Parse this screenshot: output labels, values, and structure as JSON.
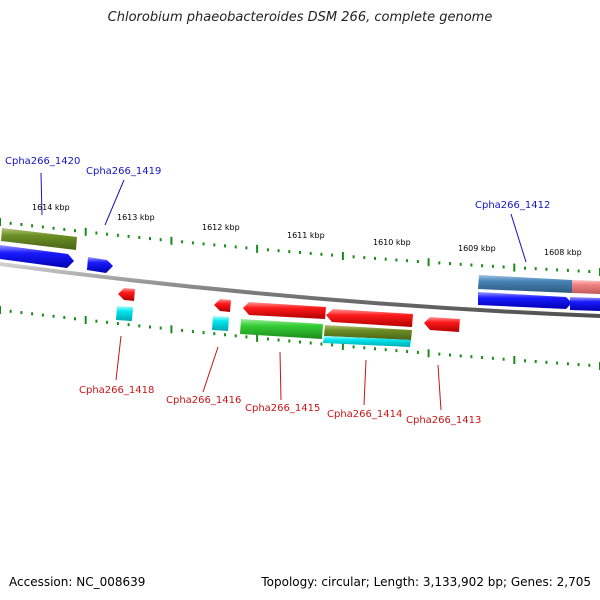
{
  "title": "Chlorobium phaeobacteroides DSM 266, complete genome",
  "footer": {
    "accession": "Accession: NC_008639",
    "summary": "Topology: circular; Length: 3,133,902 bp; Genes: 2,705"
  },
  "scale_labels": [
    "1614 kbp",
    "1613 kbp",
    "1612 kbp",
    "1611 kbp",
    "1610 kbp",
    "1609 kbp",
    "1608 kbp"
  ],
  "gene_labels": {
    "forward": [
      "Cpha266_1420",
      "Cpha266_1419",
      "Cpha266_1412"
    ],
    "reverse": [
      "Cpha266_1418",
      "Cpha266_1416",
      "Cpha266_1415",
      "Cpha266_1414",
      "Cpha266_1413"
    ]
  },
  "colors": {
    "forward_label": "#1414c8",
    "reverse_label": "#c81414",
    "forward_gene": "#1a1aff",
    "reverse_gene": "#ff2020",
    "green_gene": "#33cc33",
    "olive_gene": "#6b8e23",
    "cyan_gene": "#00e5ee",
    "steel_gene": "#4682b4",
    "tick": "#1a8c1a",
    "backbone": "#808080"
  }
}
